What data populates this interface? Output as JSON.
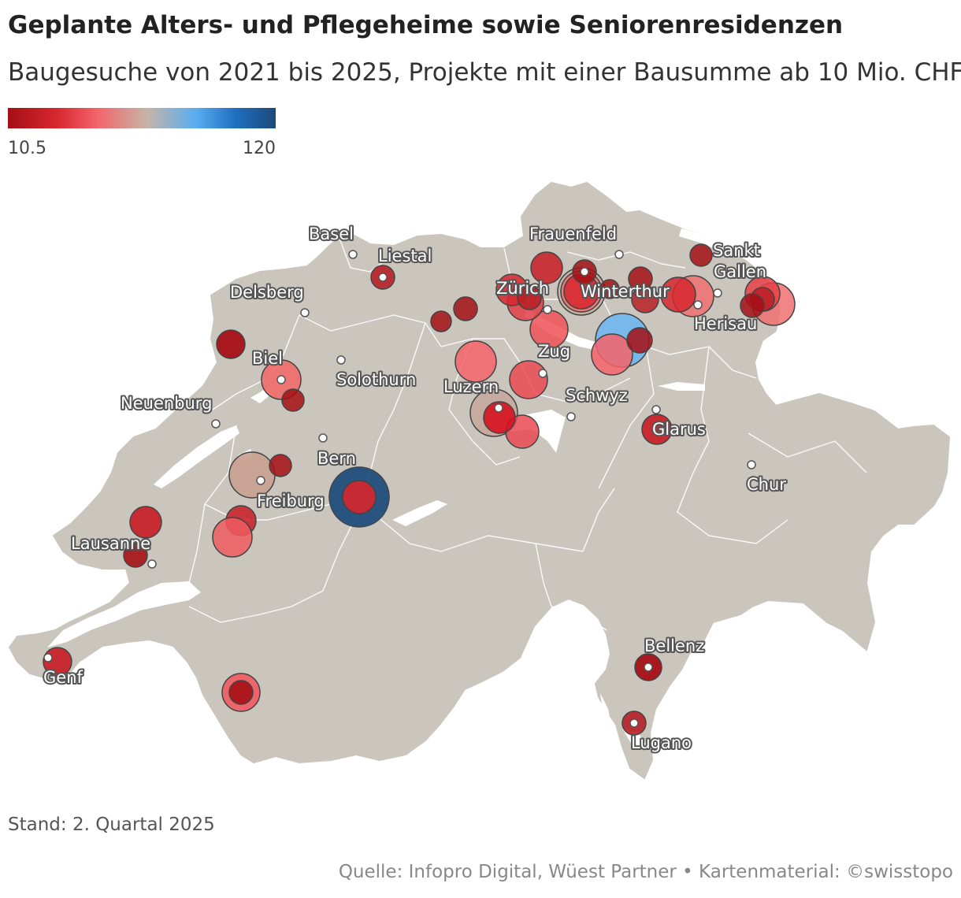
{
  "title": "Geplante Alters- und Pflegeheime sowie Seniorenresidenzen",
  "subtitle": "Baugesuche von 2021 bis 2025, Projekte mit einer Bausumme ab 10 Mio. CHF",
  "legend": {
    "min": "10.5",
    "max": "120",
    "colors": [
      "#a50f15",
      "#d7262e",
      "#f4636a",
      "#c5b4a8",
      "#5aaef0",
      "#1f6fc0",
      "#1b4a7a"
    ]
  },
  "cities": [
    {
      "name": "Basel",
      "label": "Basel"
    },
    {
      "name": "liestal",
      "label": "Liestal"
    },
    {
      "name": "delsberg",
      "label": "Delsberg"
    },
    {
      "name": "biel",
      "label": "Biel"
    },
    {
      "name": "solothurn",
      "label": "Solothurn"
    },
    {
      "name": "neuenburg",
      "label": "Neuenburg"
    },
    {
      "name": "bern",
      "label": "Bern"
    },
    {
      "name": "freiburg",
      "label": "Freiburg"
    },
    {
      "name": "lausanne",
      "label": "Lausanne"
    },
    {
      "name": "genf",
      "label": "Genf"
    },
    {
      "name": "frauenfeld",
      "label": "Frauenfeld"
    },
    {
      "name": "zuerich",
      "label": "Zürich"
    },
    {
      "name": "winterthur",
      "label": "Winterthur"
    },
    {
      "name": "sankt",
      "label": "Sankt"
    },
    {
      "name": "gallen",
      "label": "Gallen"
    },
    {
      "name": "herisau",
      "label": "Herisau"
    },
    {
      "name": "zug",
      "label": "Zug"
    },
    {
      "name": "luzern",
      "label": "Luzern"
    },
    {
      "name": "schwyz",
      "label": "Schwyz"
    },
    {
      "name": "glarus",
      "label": "Glarus"
    },
    {
      "name": "chur",
      "label": "Chur"
    },
    {
      "name": "bellenz",
      "label": "Bellenz"
    },
    {
      "name": "lugano",
      "label": "Lugano"
    }
  ],
  "stand": "Stand: 2. Quartal 2025",
  "source": "Quelle: Infopro Digital, Wüest Partner • Kartenmaterial: ©swisstopo"
}
